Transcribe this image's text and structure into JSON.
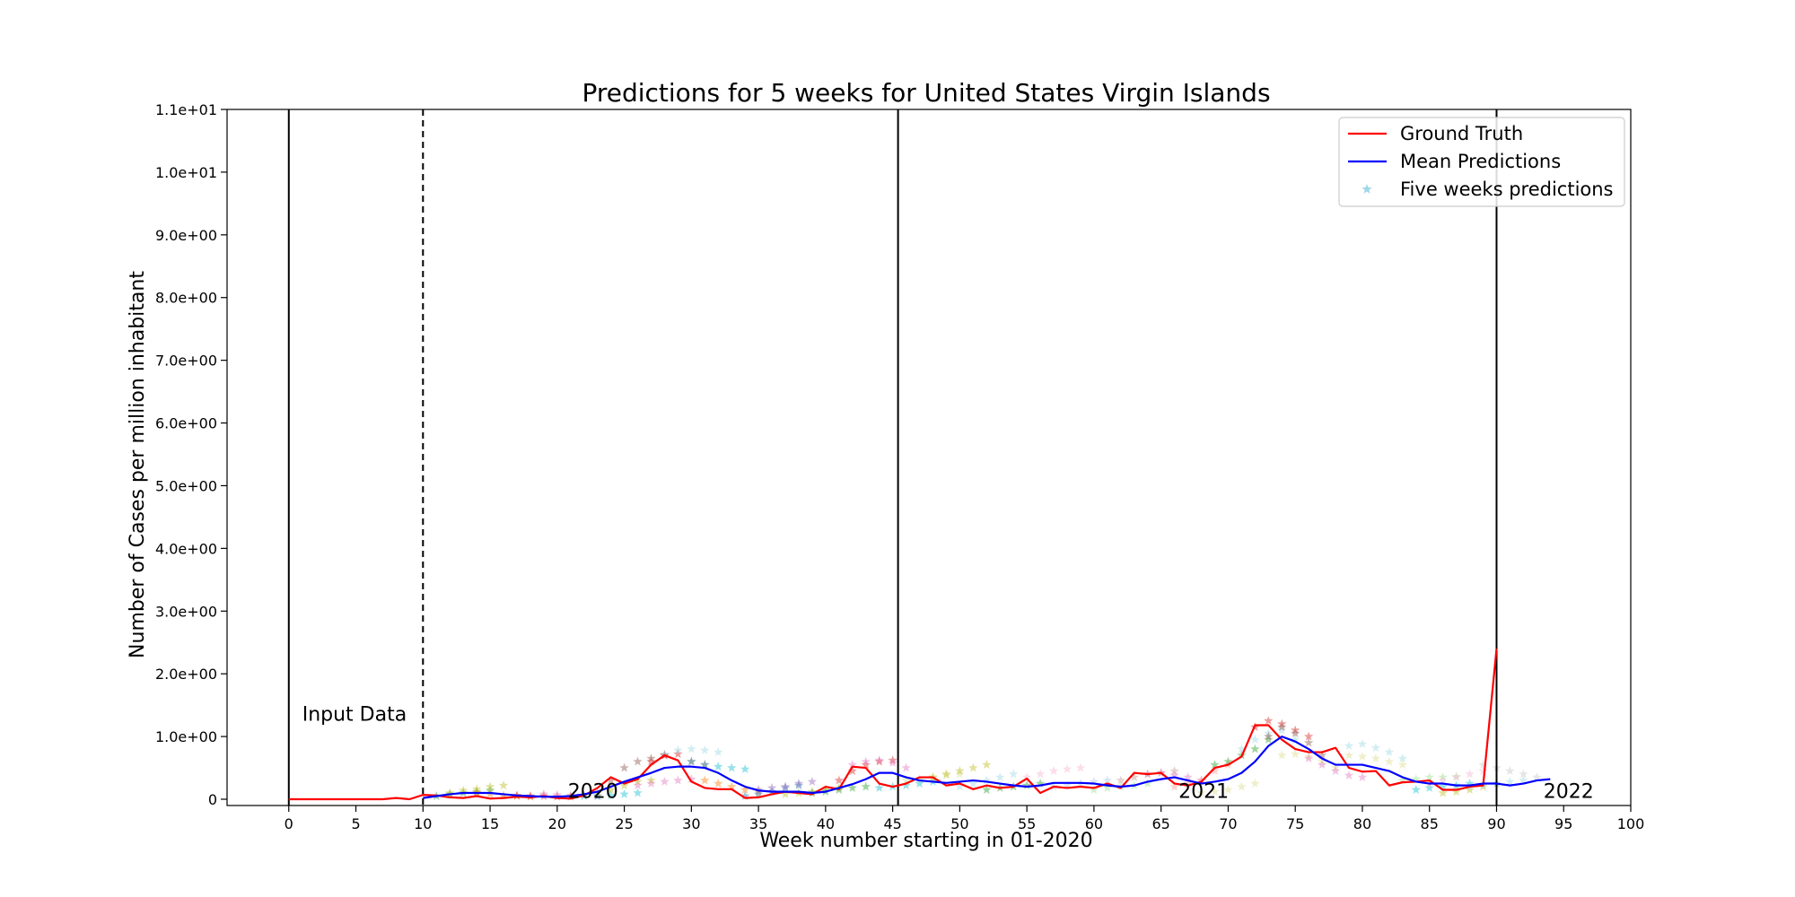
{
  "chart_data": {
    "type": "line",
    "title": "Predictions for 5 weeks for United States Virgin Islands",
    "xlabel": "Week number starting in 01-2020",
    "ylabel": "Number of Cases per million inhabitant",
    "xlim": [
      -4.6,
      100
    ],
    "ylim": [
      -0.1,
      11
    ],
    "x_ticks": [
      0,
      5,
      10,
      15,
      20,
      25,
      30,
      35,
      40,
      45,
      50,
      55,
      60,
      65,
      70,
      75,
      80,
      85,
      90,
      95,
      100
    ],
    "y_ticks": [
      0,
      1,
      2,
      3,
      4,
      5,
      6,
      7,
      8,
      9,
      10,
      11
    ],
    "y_tick_labels": [
      "0",
      "1.0e+00",
      "2.0e+00",
      "3.0e+00",
      "4.0e+00",
      "5.0e+00",
      "6.0e+00",
      "7.0e+00",
      "8.0e+00",
      "9.0e+00",
      "1.0e+01",
      "1.1e+01"
    ],
    "grid": false,
    "legend_position": "top-right",
    "legend": [
      {
        "label": "Ground Truth",
        "color": "#ff0000",
        "kind": "line"
      },
      {
        "label": "Mean Predictions",
        "color": "#0000ff",
        "kind": "line"
      },
      {
        "label": "Five weeks predictions",
        "color": "#9fd8e8",
        "kind": "star"
      }
    ],
    "vertical_lines": [
      {
        "x": 0,
        "style": "solid"
      },
      {
        "x": 10,
        "style": "dashed"
      },
      {
        "x": 45.4,
        "style": "solid"
      },
      {
        "x": 90,
        "style": "solid"
      }
    ],
    "annotations": [
      {
        "text": "Input Data",
        "x": 1,
        "y": 1.25
      },
      {
        "text": "2020",
        "x": 20.8,
        "y": 0.02
      },
      {
        "text": "2021",
        "x": 66.3,
        "y": 0.02
      },
      {
        "text": "2022",
        "x": 93.5,
        "y": 0.02
      }
    ],
    "series": [
      {
        "name": "Ground Truth",
        "color": "#ff0000",
        "x": [
          0,
          1,
          2,
          3,
          4,
          5,
          6,
          7,
          8,
          9,
          10,
          11,
          12,
          13,
          14,
          15,
          16,
          17,
          18,
          19,
          20,
          21,
          22,
          23,
          24,
          25,
          26,
          27,
          28,
          29,
          30,
          31,
          32,
          33,
          34,
          35,
          36,
          37,
          38,
          39,
          40,
          41,
          42,
          43,
          44,
          45,
          46,
          47,
          48,
          49,
          50,
          51,
          52,
          53,
          54,
          55,
          56,
          57,
          58,
          59,
          60,
          61,
          62,
          63,
          64,
          65,
          66,
          67,
          68,
          69,
          70,
          71,
          72,
          73,
          74,
          75,
          76,
          77,
          78,
          79,
          80,
          81,
          82,
          83,
          84,
          85,
          86,
          87,
          88,
          89,
          90
        ],
        "y": [
          0,
          0,
          0,
          0,
          0,
          0,
          0,
          0,
          0.02,
          0,
          0.07,
          0.06,
          0.03,
          0.02,
          0.05,
          0.01,
          0.02,
          0.04,
          0.03,
          0.05,
          0.02,
          0.01,
          0.06,
          0.18,
          0.35,
          0.25,
          0.32,
          0.55,
          0.7,
          0.62,
          0.28,
          0.18,
          0.16,
          0.16,
          0.02,
          0.03,
          0.08,
          0.12,
          0.1,
          0.08,
          0.2,
          0.16,
          0.52,
          0.5,
          0.25,
          0.2,
          0.25,
          0.35,
          0.35,
          0.22,
          0.25,
          0.16,
          0.22,
          0.18,
          0.2,
          0.33,
          0.1,
          0.2,
          0.18,
          0.2,
          0.18,
          0.25,
          0.18,
          0.42,
          0.4,
          0.42,
          0.25,
          0.22,
          0.28,
          0.5,
          0.55,
          0.68,
          1.18,
          1.18,
          0.95,
          0.8,
          0.75,
          0.75,
          0.82,
          0.5,
          0.44,
          0.45,
          0.22,
          0.27,
          0.28,
          0.3,
          0.15,
          0.15,
          0.2,
          0.22,
          2.4
        ]
      },
      {
        "name": "Mean Predictions",
        "color": "#0000ff",
        "x": [
          10,
          11,
          12,
          13,
          14,
          15,
          16,
          17,
          18,
          19,
          20,
          21,
          22,
          23,
          24,
          25,
          26,
          27,
          28,
          29,
          30,
          31,
          32,
          33,
          34,
          35,
          36,
          37,
          38,
          39,
          40,
          41,
          42,
          43,
          44,
          45,
          46,
          47,
          48,
          49,
          50,
          51,
          52,
          53,
          54,
          55,
          56,
          57,
          58,
          59,
          60,
          61,
          62,
          63,
          64,
          65,
          66,
          67,
          68,
          69,
          70,
          71,
          72,
          73,
          74,
          75,
          76,
          77,
          78,
          79,
          80,
          81,
          82,
          83,
          84,
          85,
          86,
          87,
          88,
          89,
          90,
          91,
          92,
          93,
          94
        ],
        "y": [
          0.02,
          0.05,
          0.08,
          0.1,
          0.1,
          0.1,
          0.08,
          0.06,
          0.05,
          0.04,
          0.04,
          0.05,
          0.08,
          0.12,
          0.2,
          0.28,
          0.35,
          0.42,
          0.5,
          0.52,
          0.52,
          0.5,
          0.42,
          0.3,
          0.2,
          0.14,
          0.12,
          0.12,
          0.12,
          0.1,
          0.12,
          0.18,
          0.24,
          0.32,
          0.42,
          0.42,
          0.35,
          0.3,
          0.28,
          0.26,
          0.28,
          0.3,
          0.28,
          0.25,
          0.22,
          0.2,
          0.22,
          0.26,
          0.26,
          0.26,
          0.25,
          0.22,
          0.2,
          0.22,
          0.28,
          0.32,
          0.35,
          0.3,
          0.25,
          0.28,
          0.32,
          0.42,
          0.6,
          0.85,
          1.0,
          0.92,
          0.8,
          0.65,
          0.55,
          0.55,
          0.55,
          0.5,
          0.45,
          0.35,
          0.28,
          0.25,
          0.25,
          0.22,
          0.22,
          0.25,
          0.25,
          0.22,
          0.25,
          0.3,
          0.32
        ]
      }
    ],
    "five_week_predictions": [
      {
        "x": [
          11,
          12,
          13,
          14,
          15
        ],
        "y": [
          0.05,
          0.08,
          0.1,
          0.12,
          0.14
        ],
        "color": "#2ca02c"
      },
      {
        "x": [
          12,
          13,
          14,
          15,
          16
        ],
        "y": [
          0.1,
          0.14,
          0.16,
          0.2,
          0.22
        ],
        "color": "#bcbd22"
      },
      {
        "x": [
          14,
          15,
          16,
          17,
          18
        ],
        "y": [
          0.1,
          0.08,
          0.06,
          0.05,
          0.04
        ],
        "color": "#ff7f0e"
      },
      {
        "x": [
          17,
          18,
          19,
          20,
          21
        ],
        "y": [
          0.06,
          0.05,
          0.05,
          0.04,
          0.04
        ],
        "color": "#d62728"
      },
      {
        "x": [
          19,
          20,
          21,
          22,
          23
        ],
        "y": [
          0.08,
          0.07,
          0.06,
          0.06,
          0.05
        ],
        "color": "#e377c2"
      },
      {
        "x": [
          22,
          23,
          24,
          25,
          26
        ],
        "y": [
          0.05,
          0.05,
          0.06,
          0.08,
          0.1
        ],
        "color": "#17becf"
      },
      {
        "x": [
          23,
          24,
          25,
          26,
          27
        ],
        "y": [
          0.1,
          0.15,
          0.22,
          0.28,
          0.3
        ],
        "color": "#bcbd22"
      },
      {
        "x": [
          24,
          25,
          26,
          27,
          28
        ],
        "y": [
          0.3,
          0.5,
          0.6,
          0.65,
          0.7
        ],
        "color": "#8c564b"
      },
      {
        "x": [
          26,
          27,
          28,
          29,
          30
        ],
        "y": [
          0.22,
          0.25,
          0.28,
          0.3,
          0.32
        ],
        "color": "#e377c2"
      },
      {
        "x": [
          27,
          28,
          29,
          30,
          31
        ],
        "y": [
          0.6,
          0.7,
          0.72,
          0.6,
          0.55
        ],
        "color": "#d62728"
      },
      {
        "x": [
          28,
          29,
          30,
          31,
          32
        ],
        "y": [
          0.72,
          0.78,
          0.8,
          0.78,
          0.75
        ],
        "color": "#9edae5"
      },
      {
        "x": [
          30,
          31,
          32,
          33,
          34
        ],
        "y": [
          0.6,
          0.55,
          0.52,
          0.5,
          0.48
        ],
        "color": "#17becf"
      },
      {
        "x": [
          31,
          32,
          33,
          34,
          35
        ],
        "y": [
          0.3,
          0.25,
          0.2,
          0.15,
          0.12
        ],
        "color": "#ff7f0e"
      },
      {
        "x": [
          34,
          35,
          36,
          37,
          38
        ],
        "y": [
          0.05,
          0.08,
          0.12,
          0.18,
          0.22
        ],
        "color": "#1f77b4"
      },
      {
        "x": [
          35,
          36,
          37,
          38,
          39
        ],
        "y": [
          0.15,
          0.18,
          0.2,
          0.25,
          0.28
        ],
        "color": "#9467bd"
      },
      {
        "x": [
          37,
          38,
          39,
          40,
          41
        ],
        "y": [
          0.08,
          0.1,
          0.12,
          0.15,
          0.18
        ],
        "color": "#bcbd22"
      },
      {
        "x": [
          39,
          40,
          41,
          42,
          43
        ],
        "y": [
          0.1,
          0.12,
          0.15,
          0.18,
          0.2
        ],
        "color": "#2ca02c"
      },
      {
        "x": [
          41,
          42,
          43,
          44,
          45
        ],
        "y": [
          0.3,
          0.45,
          0.55,
          0.6,
          0.62
        ],
        "color": "#d62728"
      },
      {
        "x": [
          42,
          43,
          44,
          45,
          46
        ],
        "y": [
          0.55,
          0.6,
          0.62,
          0.58,
          0.5
        ],
        "color": "#e377c2"
      },
      {
        "x": [
          44,
          45,
          46,
          47,
          48
        ],
        "y": [
          0.18,
          0.2,
          0.22,
          0.25,
          0.28
        ],
        "color": "#17becf"
      },
      {
        "x": [
          46,
          47,
          48,
          49,
          50
        ],
        "y": [
          0.3,
          0.32,
          0.35,
          0.38,
          0.4
        ],
        "color": "#dbdb8d"
      },
      {
        "x": [
          48,
          49,
          50,
          51,
          52
        ],
        "y": [
          0.35,
          0.4,
          0.45,
          0.5,
          0.55
        ],
        "color": "#bcbd22"
      },
      {
        "x": [
          50,
          51,
          52,
          53,
          54
        ],
        "y": [
          0.2,
          0.25,
          0.3,
          0.35,
          0.4
        ],
        "color": "#9edae5"
      },
      {
        "x": [
          52,
          53,
          54,
          55,
          56
        ],
        "y": [
          0.15,
          0.18,
          0.2,
          0.22,
          0.25
        ],
        "color": "#2ca02c"
      },
      {
        "x": [
          55,
          56,
          57,
          58,
          59
        ],
        "y": [
          0.35,
          0.4,
          0.45,
          0.48,
          0.5
        ],
        "color": "#f7b6d2"
      },
      {
        "x": [
          57,
          58,
          59,
          60,
          61
        ],
        "y": [
          0.2,
          0.22,
          0.25,
          0.28,
          0.3
        ],
        "color": "#aec7e8"
      },
      {
        "x": [
          60,
          61,
          62,
          63,
          64
        ],
        "y": [
          0.15,
          0.18,
          0.2,
          0.22,
          0.25
        ],
        "color": "#98df8a"
      },
      {
        "x": [
          62,
          63,
          64,
          65,
          66
        ],
        "y": [
          0.3,
          0.35,
          0.4,
          0.42,
          0.45
        ],
        "color": "#c49c94"
      },
      {
        "x": [
          64,
          65,
          66,
          67,
          68
        ],
        "y": [
          0.4,
          0.42,
          0.38,
          0.35,
          0.3
        ],
        "color": "#e377c2"
      },
      {
        "x": [
          66,
          67,
          68,
          69,
          70
        ],
        "y": [
          0.2,
          0.25,
          0.3,
          0.45,
          0.55
        ],
        "color": "#ff9896"
      },
      {
        "x": [
          68,
          69,
          70,
          71,
          72
        ],
        "y": [
          0.1,
          0.12,
          0.15,
          0.2,
          0.25
        ],
        "color": "#dbdb8d"
      },
      {
        "x": [
          69,
          70,
          71,
          72,
          73
        ],
        "y": [
          0.55,
          0.6,
          0.7,
          0.8,
          0.95
        ],
        "color": "#2ca02c"
      },
      {
        "x": [
          71,
          72,
          73,
          74,
          75
        ],
        "y": [
          0.8,
          0.95,
          1.05,
          1.1,
          0.95
        ],
        "color": "#9edae5"
      },
      {
        "x": [
          72,
          73,
          74,
          75,
          76
        ],
        "y": [
          1.15,
          1.25,
          1.2,
          1.1,
          1.0
        ],
        "color": "#d62728"
      },
      {
        "x": [
          73,
          74,
          75,
          76,
          77
        ],
        "y": [
          1.0,
          1.15,
          1.05,
          0.9,
          0.7
        ],
        "color": "#8c564b"
      },
      {
        "x": [
          74,
          75,
          76,
          77,
          78
        ],
        "y": [
          0.7,
          0.72,
          0.68,
          0.6,
          0.5
        ],
        "color": "#dbdb8d"
      },
      {
        "x": [
          76,
          77,
          78,
          79,
          80
        ],
        "y": [
          0.65,
          0.55,
          0.45,
          0.38,
          0.35
        ],
        "color": "#e377c2"
      },
      {
        "x": [
          79,
          80,
          81,
          82,
          83
        ],
        "y": [
          0.85,
          0.88,
          0.82,
          0.75,
          0.65
        ],
        "color": "#9edae5"
      },
      {
        "x": [
          79,
          80,
          81,
          82,
          83
        ],
        "y": [
          0.7,
          0.68,
          0.65,
          0.6,
          0.55
        ],
        "color": "#dbdb8d"
      },
      {
        "x": [
          83,
          84,
          85,
          86,
          87
        ],
        "y": [
          0.3,
          0.32,
          0.35,
          0.35,
          0.36
        ],
        "color": "#98df8a"
      },
      {
        "x": [
          84,
          85,
          86,
          87,
          88
        ],
        "y": [
          0.15,
          0.18,
          0.2,
          0.22,
          0.25
        ],
        "color": "#17becf"
      },
      {
        "x": [
          85,
          86,
          87,
          88,
          89
        ],
        "y": [
          0.25,
          0.3,
          0.35,
          0.4,
          0.45
        ],
        "color": "#f7b6d2"
      },
      {
        "x": [
          86,
          87,
          88,
          89,
          90
        ],
        "y": [
          0.1,
          0.12,
          0.15,
          0.2,
          0.25
        ],
        "color": "#bcbd22"
      },
      {
        "x": [
          88,
          89,
          90,
          91,
          92
        ],
        "y": [
          0.2,
          0.22,
          0.25,
          0.28,
          0.3
        ],
        "color": "#9edae5"
      },
      {
        "x": [
          89,
          90,
          91,
          92,
          93
        ],
        "y": [
          0.55,
          0.5,
          0.45,
          0.4,
          0.35
        ],
        "color": "#c7c7c7"
      }
    ]
  }
}
